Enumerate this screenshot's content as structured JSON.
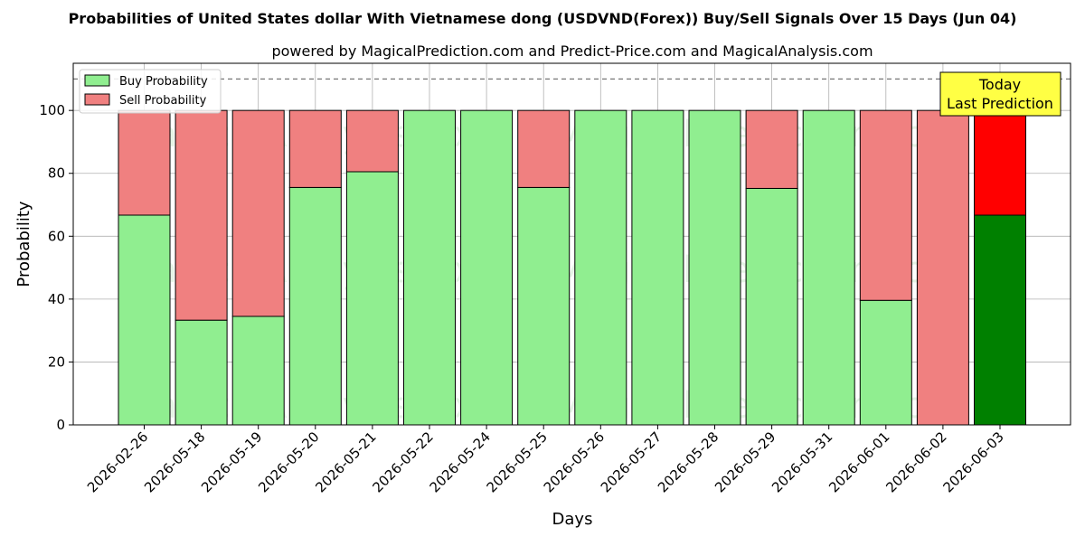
{
  "chart_data": {
    "type": "bar",
    "stacked": true,
    "title": "Probabilities of United States dollar With Vietnamese dong (USDVND(Forex)) Buy/Sell Signals Over 15 Days (Jun 04)",
    "subtitle": "powered by MagicalPrediction.com and Predict-Price.com and MagicalAnalysis.com",
    "xlabel": "Days",
    "ylabel": "Probability",
    "ylim": [
      0,
      115
    ],
    "yticks": [
      0,
      20,
      40,
      60,
      80,
      100
    ],
    "grid": true,
    "legend_position": "top-left",
    "reference_line": 110,
    "categories": [
      "2026-02-26",
      "2026-05-18",
      "2026-05-19",
      "2026-05-20",
      "2026-05-21",
      "2026-05-22",
      "2026-05-24",
      "2026-05-25",
      "2026-05-26",
      "2026-05-27",
      "2026-05-28",
      "2026-05-29",
      "2026-05-31",
      "2026-06-01",
      "2026-06-02",
      "2026-06-03"
    ],
    "series": [
      {
        "name": "Buy Probability",
        "color": "#90ee90",
        "highlight_color": "#008000",
        "values": [
          66.7,
          33.3,
          34.5,
          75.5,
          80.5,
          100,
          100,
          75.5,
          100,
          100,
          100,
          75.2,
          100,
          39.6,
          0,
          66.7
        ]
      },
      {
        "name": "Sell Probability",
        "color": "#f08080",
        "highlight_color": "#ff0000",
        "values": [
          33.3,
          66.7,
          65.5,
          24.5,
          19.5,
          0,
          0,
          24.5,
          0,
          0,
          0,
          24.8,
          0,
          60.4,
          100,
          33.3
        ]
      }
    ],
    "highlight_index": 15,
    "annotation": {
      "lines": [
        "Today",
        "Last Prediction"
      ],
      "background": "#ffff44"
    },
    "watermarks": [
      "MagicalAnalysis.com",
      "MagicalPrediction.com"
    ]
  }
}
